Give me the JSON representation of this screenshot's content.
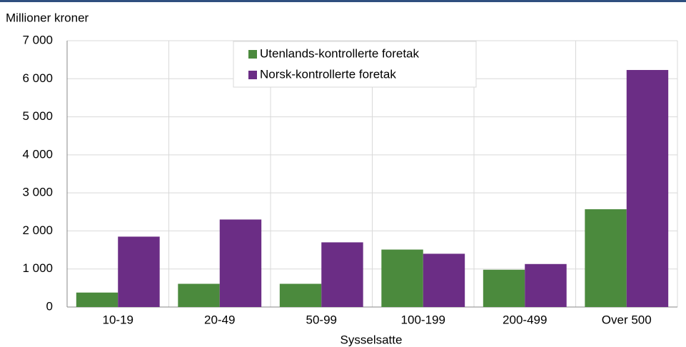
{
  "chart_data": {
    "type": "bar",
    "y_axis_label": "Millioner kroner",
    "x_axis_label": "Sysselsatte",
    "categories": [
      "10-19",
      "20-49",
      "50-99",
      "100-199",
      "200-499",
      "Over 500"
    ],
    "series": [
      {
        "name": "Utenlands-kontrollerte foretak",
        "color": "#4b8a3d",
        "values": [
          380,
          610,
          610,
          1510,
          980,
          2570
        ]
      },
      {
        "name": "Norsk-kontrollerte foretak",
        "color": "#6b2d85",
        "values": [
          1850,
          2300,
          1700,
          1400,
          1130,
          6230
        ]
      }
    ],
    "ylim": [
      0,
      7000
    ],
    "yticks": [
      0,
      {
        "value": 1000,
        "label": "1 000"
      },
      {
        "value": 2000,
        "label": "2 000"
      },
      {
        "value": 3000,
        "label": "3 000"
      },
      {
        "value": 4000,
        "label": "4 000"
      },
      {
        "value": 5000,
        "label": "5 000"
      },
      {
        "value": 6000,
        "label": "6 000"
      },
      {
        "value": 7000,
        "label": "7 000"
      }
    ],
    "grid": true
  }
}
